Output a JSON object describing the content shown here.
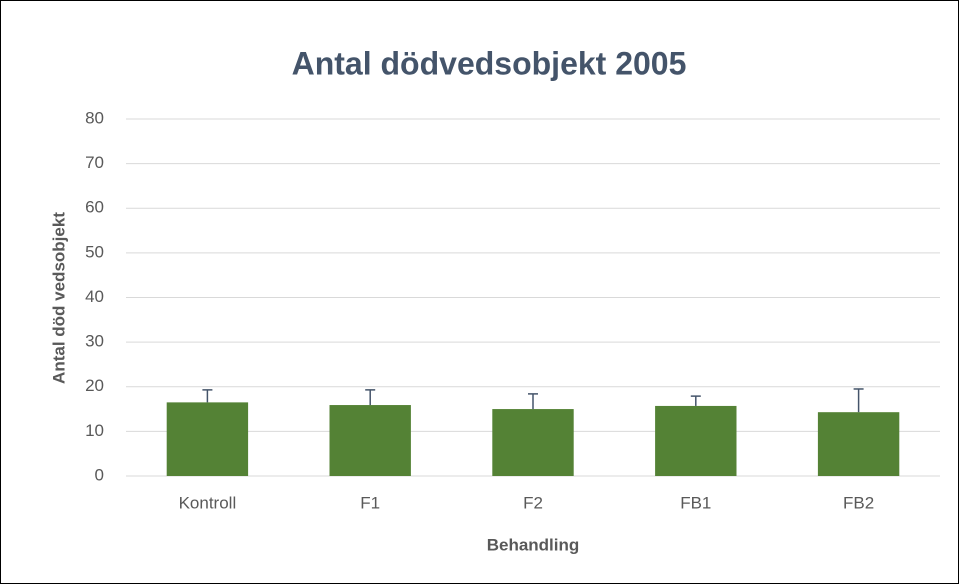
{
  "chart_data": {
    "type": "bar",
    "title": "Antal dödvedsobjekt 2005",
    "x_label": "Behandling",
    "y_label": "Antal död vedsobjekt",
    "categories": [
      "Kontroll",
      "F1",
      "F2",
      "FB1",
      "FB2"
    ],
    "values": [
      16.5,
      15.9,
      15.0,
      15.7,
      14.3
    ],
    "errors": [
      2.8,
      3.4,
      3.4,
      2.2,
      5.2
    ],
    "color": "#548235",
    "error_color": "#44546a",
    "ylim": [
      0,
      80
    ],
    "yticks": [
      0,
      10,
      20,
      30,
      40,
      50,
      60,
      70,
      80
    ],
    "grid": true
  }
}
